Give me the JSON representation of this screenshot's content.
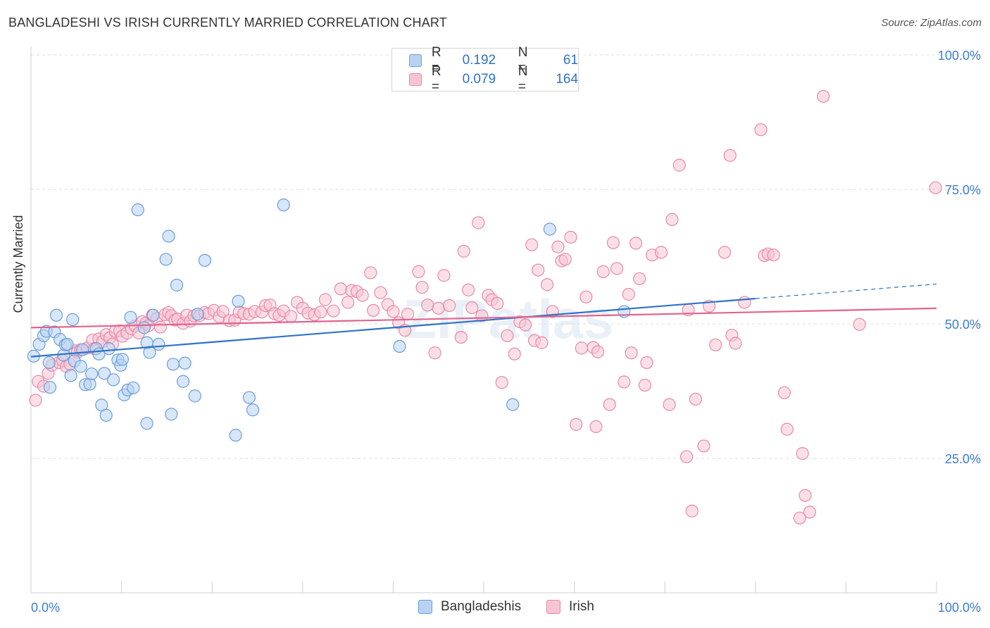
{
  "title": "BANGLADESHI VS IRISH CURRENTLY MARRIED CORRELATION CHART",
  "source": "Source: ZipAtlas.com",
  "watermark": "ZIPatlas",
  "legend": {
    "r_label": "R =",
    "n_label": "N =",
    "rows": [
      {
        "r": "0.192",
        "n": "61"
      },
      {
        "r": "0.079",
        "n": "164"
      }
    ]
  },
  "colors": {
    "blue_fill": "#b7d2f3",
    "blue_stroke": "#6b9edb",
    "blue_line": "#2f72c6",
    "pink_fill": "#f8c4d4",
    "pink_stroke": "#e88aa8",
    "pink_line": "#e0648f",
    "axis_text": "#3b7dd0",
    "grid": "#dcdcdc"
  },
  "chart_data": {
    "type": "scatter",
    "ylabel": "Currently Married",
    "xlabel": "",
    "xlim": [
      0,
      100
    ],
    "ylim": [
      0,
      100
    ],
    "x_tick_labels": [
      "0.0%",
      "100.0%"
    ],
    "y_ticks": [
      25,
      50,
      75,
      100
    ],
    "y_tick_labels": [
      "25.0%",
      "50.0%",
      "75.0%",
      "100.0%"
    ],
    "grid": true,
    "legend_position": "bottom",
    "series": [
      {
        "name": "Bangladeshis",
        "color": "blue",
        "trend": {
          "x0": 0,
          "y0": 43.9,
          "x1": 80,
          "y1": 54.7,
          "dash_to_x": 100,
          "dash_to_y": 57.4
        },
        "points": [
          [
            0.3,
            44
          ],
          [
            0.9,
            46.2
          ],
          [
            1.4,
            47.8
          ],
          [
            1.7,
            48.6
          ],
          [
            2.0,
            42.8
          ],
          [
            2.1,
            38.2
          ],
          [
            2.6,
            48.5
          ],
          [
            2.8,
            51.6
          ],
          [
            3.2,
            47.1
          ],
          [
            3.6,
            44.2
          ],
          [
            3.8,
            46.1
          ],
          [
            4.0,
            46.2
          ],
          [
            4.4,
            40.4
          ],
          [
            4.6,
            50.8
          ],
          [
            4.8,
            43.1
          ],
          [
            5.5,
            42.1
          ],
          [
            5.7,
            45.2
          ],
          [
            6.0,
            38.7
          ],
          [
            6.5,
            38.8
          ],
          [
            6.7,
            40.7
          ],
          [
            7.2,
            45.4
          ],
          [
            7.5,
            44.4
          ],
          [
            7.8,
            34.9
          ],
          [
            8.1,
            40.8
          ],
          [
            8.3,
            33.0
          ],
          [
            8.6,
            45.4
          ],
          [
            9.1,
            39.6
          ],
          [
            9.6,
            43.3
          ],
          [
            9.9,
            42.3
          ],
          [
            10.1,
            43.4
          ],
          [
            10.3,
            36.8
          ],
          [
            10.7,
            37.7
          ],
          [
            11.0,
            51.2
          ],
          [
            11.3,
            38.1
          ],
          [
            11.8,
            71.2
          ],
          [
            12.5,
            49.3
          ],
          [
            12.8,
            31.5
          ],
          [
            12.8,
            46.5
          ],
          [
            13.1,
            44.7
          ],
          [
            13.5,
            51.6
          ],
          [
            14.1,
            46.2
          ],
          [
            14.9,
            62.0
          ],
          [
            15.2,
            66.3
          ],
          [
            15.5,
            33.2
          ],
          [
            15.7,
            42.5
          ],
          [
            16.1,
            57.2
          ],
          [
            16.8,
            39.3
          ],
          [
            17.0,
            42.7
          ],
          [
            18.1,
            36.6
          ],
          [
            18.4,
            51.8
          ],
          [
            19.2,
            61.8
          ],
          [
            22.6,
            29.3
          ],
          [
            22.9,
            54.2
          ],
          [
            24.1,
            36.3
          ],
          [
            24.5,
            34.0
          ],
          [
            27.9,
            72.1
          ],
          [
            40.7,
            45.8
          ],
          [
            53.2,
            35.0
          ],
          [
            57.3,
            67.6
          ],
          [
            65.5,
            52.3
          ]
        ]
      },
      {
        "name": "Irish",
        "color": "pink",
        "trend": {
          "x0": 0,
          "y0": 49.3,
          "x1": 100,
          "y1": 52.9
        },
        "points": [
          [
            0.5,
            35.8
          ],
          [
            0.8,
            39.3
          ],
          [
            1.4,
            38.4
          ],
          [
            1.9,
            40.8
          ],
          [
            2.3,
            42.3
          ],
          [
            3.1,
            42.8
          ],
          [
            3.5,
            43.2
          ],
          [
            3.9,
            42.1
          ],
          [
            4.3,
            42.5
          ],
          [
            4.9,
            45.0
          ],
          [
            5.1,
            44.7
          ],
          [
            5.5,
            45.2
          ],
          [
            6.2,
            45.5
          ],
          [
            6.8,
            47.0
          ],
          [
            7.0,
            45.4
          ],
          [
            7.5,
            47.2
          ],
          [
            7.9,
            46.7
          ],
          [
            8.3,
            48.0
          ],
          [
            8.7,
            47.4
          ],
          [
            9.0,
            46.2
          ],
          [
            9.3,
            48.6
          ],
          [
            9.8,
            48.7
          ],
          [
            10.1,
            47.7
          ],
          [
            10.6,
            48.3
          ],
          [
            11.1,
            49.1
          ],
          [
            11.5,
            49.6
          ],
          [
            11.9,
            48.3
          ],
          [
            12.3,
            50.4
          ],
          [
            12.7,
            50.1
          ],
          [
            13.0,
            49.7
          ],
          [
            13.4,
            51.6
          ],
          [
            13.9,
            51.0
          ],
          [
            14.3,
            49.4
          ],
          [
            14.8,
            51.7
          ],
          [
            15.2,
            52.1
          ],
          [
            15.5,
            51.5
          ],
          [
            15.9,
            50.7
          ],
          [
            16.2,
            50.9
          ],
          [
            16.8,
            50.1
          ],
          [
            17.2,
            51.6
          ],
          [
            17.6,
            50.5
          ],
          [
            18.0,
            51.5
          ],
          [
            18.6,
            51.5
          ],
          [
            19.2,
            52.1
          ],
          [
            19.6,
            51.9
          ],
          [
            20.2,
            52.5
          ],
          [
            20.8,
            51.3
          ],
          [
            21.2,
            52.3
          ],
          [
            21.9,
            50.6
          ],
          [
            22.5,
            50.7
          ],
          [
            23.0,
            52.2
          ],
          [
            23.5,
            51.9
          ],
          [
            24.1,
            51.8
          ],
          [
            24.7,
            52.3
          ],
          [
            25.5,
            52.2
          ],
          [
            25.9,
            53.4
          ],
          [
            26.4,
            53.5
          ],
          [
            26.9,
            51.9
          ],
          [
            27.4,
            51.6
          ],
          [
            27.9,
            52.4
          ],
          [
            28.7,
            51.4
          ],
          [
            29.4,
            54.0
          ],
          [
            30.0,
            52.9
          ],
          [
            30.6,
            52.0
          ],
          [
            31.3,
            51.7
          ],
          [
            32.0,
            52.2
          ],
          [
            32.5,
            54.5
          ],
          [
            33.4,
            52.4
          ],
          [
            34.2,
            56.5
          ],
          [
            35.0,
            54.0
          ],
          [
            35.4,
            56.2
          ],
          [
            36.0,
            56.0
          ],
          [
            36.6,
            55.3
          ],
          [
            37.5,
            59.5
          ],
          [
            37.8,
            52.5
          ],
          [
            38.6,
            55.8
          ],
          [
            39.4,
            53.6
          ],
          [
            40.0,
            52.3
          ],
          [
            40.6,
            50.2
          ],
          [
            41.3,
            48.8
          ],
          [
            41.6,
            51.8
          ],
          [
            42.8,
            59.7
          ],
          [
            43.2,
            56.8
          ],
          [
            43.8,
            53.5
          ],
          [
            44.6,
            44.6
          ],
          [
            45.0,
            52.9
          ],
          [
            45.6,
            59.0
          ],
          [
            46.2,
            53.4
          ],
          [
            47.5,
            47.5
          ],
          [
            47.8,
            63.5
          ],
          [
            48.3,
            56.3
          ],
          [
            48.7,
            53.0
          ],
          [
            49.4,
            68.8
          ],
          [
            49.8,
            51.5
          ],
          [
            50.5,
            55.3
          ],
          [
            50.9,
            54.5
          ],
          [
            51.5,
            53.8
          ],
          [
            52.0,
            39.1
          ],
          [
            52.6,
            47.8
          ],
          [
            53.4,
            44.4
          ],
          [
            54.0,
            50.4
          ],
          [
            54.6,
            49.8
          ],
          [
            55.3,
            64.7
          ],
          [
            55.6,
            46.9
          ],
          [
            56.0,
            60.0
          ],
          [
            56.4,
            46.5
          ],
          [
            57.0,
            57.3
          ],
          [
            57.6,
            52.3
          ],
          [
            58.2,
            64.3
          ],
          [
            58.6,
            61.7
          ],
          [
            59.0,
            62.0
          ],
          [
            59.6,
            66.1
          ],
          [
            60.2,
            31.3
          ],
          [
            60.8,
            45.5
          ],
          [
            61.3,
            55.0
          ],
          [
            62.1,
            45.6
          ],
          [
            62.4,
            30.9
          ],
          [
            62.6,
            44.8
          ],
          [
            63.2,
            59.7
          ],
          [
            63.9,
            35.0
          ],
          [
            64.3,
            65.1
          ],
          [
            64.7,
            60.3
          ],
          [
            65.5,
            39.2
          ],
          [
            66.0,
            55.5
          ],
          [
            66.3,
            44.6
          ],
          [
            66.8,
            65.0
          ],
          [
            67.2,
            58.4
          ],
          [
            67.8,
            38.6
          ],
          [
            68.0,
            42.8
          ],
          [
            68.6,
            62.8
          ],
          [
            69.6,
            63.3
          ],
          [
            70.5,
            35.0
          ],
          [
            70.8,
            69.4
          ],
          [
            71.6,
            79.5
          ],
          [
            72.4,
            25.3
          ],
          [
            72.6,
            52.6
          ],
          [
            73.0,
            15.2
          ],
          [
            73.4,
            36.0
          ],
          [
            74.3,
            27.3
          ],
          [
            74.9,
            53.3
          ],
          [
            75.6,
            46.1
          ],
          [
            76.6,
            63.3
          ],
          [
            77.2,
            81.3
          ],
          [
            77.4,
            47.9
          ],
          [
            77.8,
            46.4
          ],
          [
            78.8,
            54.0
          ],
          [
            80.6,
            86.1
          ],
          [
            81.0,
            62.7
          ],
          [
            81.4,
            63.0
          ],
          [
            82.0,
            62.8
          ],
          [
            83.2,
            37.2
          ],
          [
            83.5,
            30.4
          ],
          [
            84.9,
            13.9
          ],
          [
            85.2,
            25.9
          ],
          [
            85.5,
            18.1
          ],
          [
            86.0,
            15.0
          ],
          [
            87.5,
            92.3
          ],
          [
            91.5,
            49.9
          ],
          [
            99.9,
            75.3
          ]
        ]
      }
    ]
  },
  "bottom_legend": [
    "Bangladeshis",
    "Irish"
  ]
}
